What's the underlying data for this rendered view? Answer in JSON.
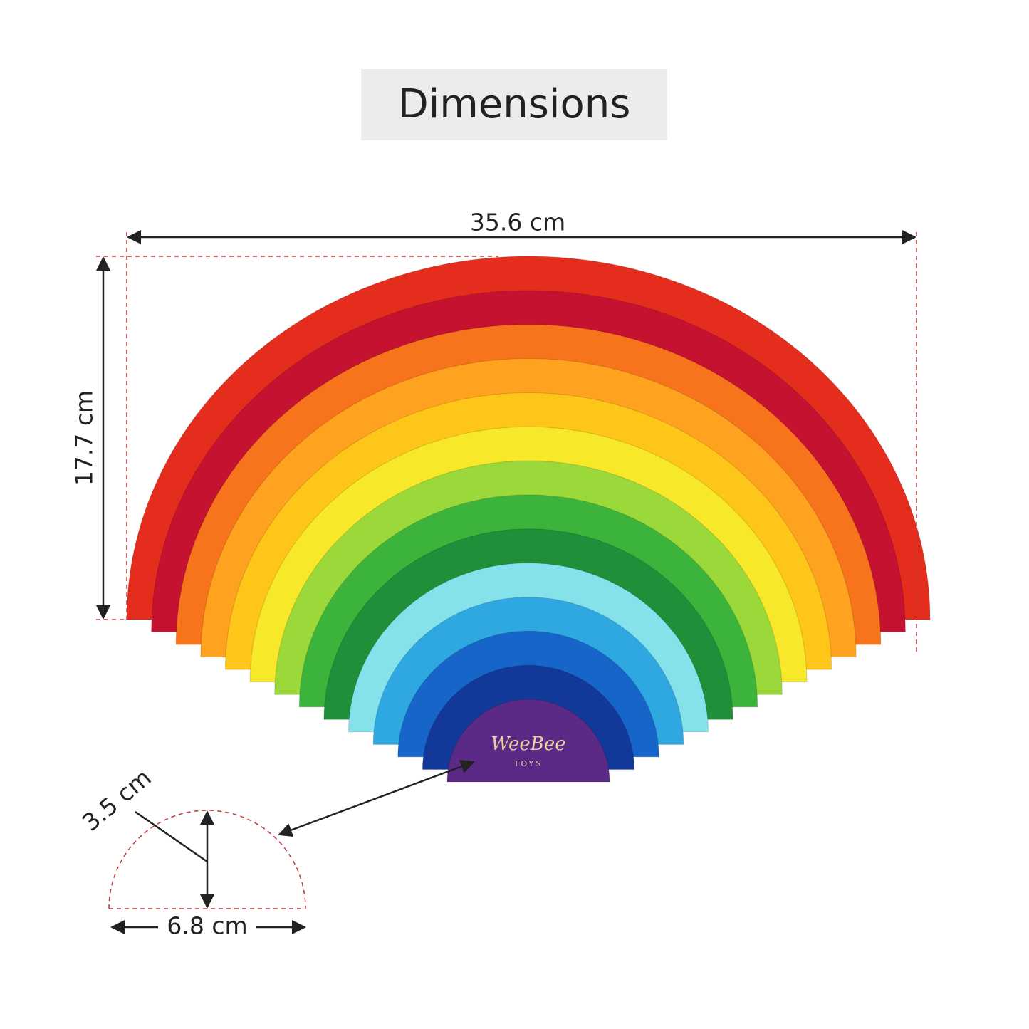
{
  "header": {
    "title": "Dimensions"
  },
  "dimensions": {
    "width": "35.6 cm",
    "height": "17.7 cm",
    "piece_height": "3.5 cm",
    "piece_width": "6.8 cm"
  },
  "logo": {
    "brand": "WeeBee",
    "sub": "TOYS"
  }
}
